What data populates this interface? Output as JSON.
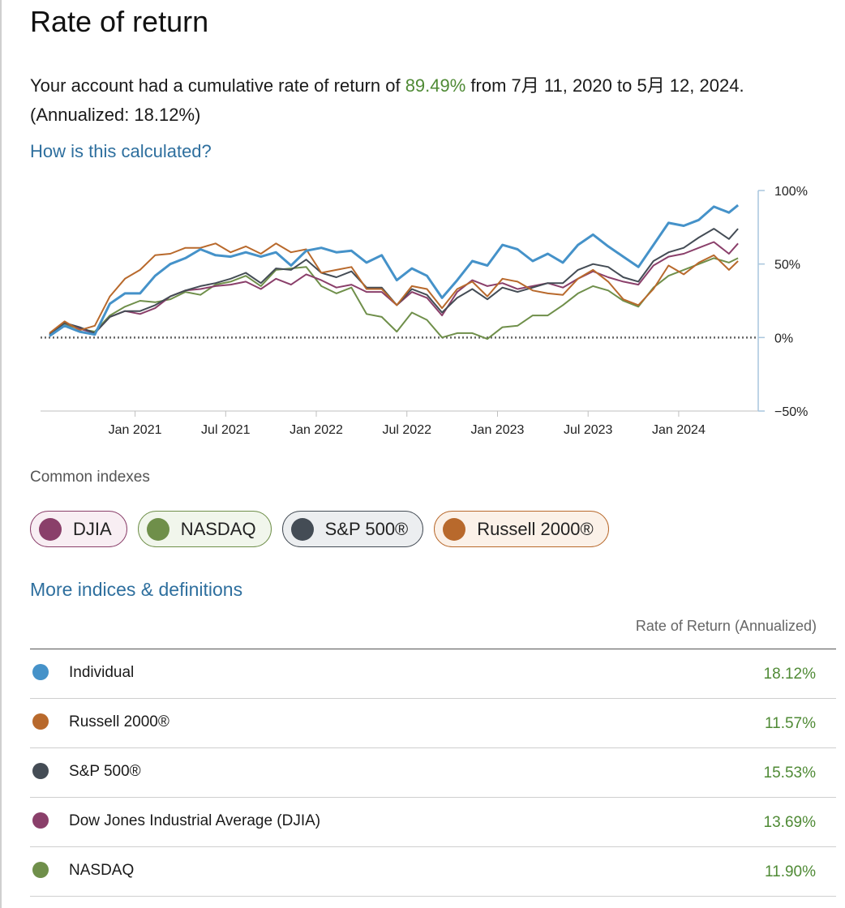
{
  "title": "Rate of return",
  "summary": {
    "prefix": "Your account had a cumulative rate of return of ",
    "cumulative": "89.49%",
    "middle": " from 7月 11, 2020 to 5月 12, 2024. (Annualized: 18.12%)"
  },
  "how_link": "How is this calculated?",
  "colors": {
    "Individual": "#4592c9",
    "Russell 2000®": "#b8692c",
    "S&P 500®": "#444c55",
    "DJIA": "#8a3f6a",
    "NASDAQ": "#6f8f4a",
    "positive_text": "#4f8a35",
    "link": "#2e6f9e"
  },
  "chart_data": {
    "type": "line",
    "x_tick_labels": [
      "Jan 2021",
      "Jul 2021",
      "Jan 2022",
      "Jul 2022",
      "Jan 2023",
      "Jul 2023",
      "Jan 2024"
    ],
    "y_tick_labels": [
      "100%",
      "50%",
      "0%",
      "−50%"
    ],
    "ylim": [
      -50,
      100
    ],
    "y_ticks": [
      100,
      50,
      0,
      -50
    ],
    "x_ticks_month": [
      5.67,
      11.67,
      17.67,
      23.67,
      29.67,
      35.67,
      41.67
    ],
    "x_range_month": [
      0,
      46.4
    ],
    "baseline": 0,
    "series": [
      {
        "name": "Individual",
        "color": "#4592c9",
        "points": [
          [
            0,
            1
          ],
          [
            1,
            8
          ],
          [
            2,
            4
          ],
          [
            3,
            2
          ],
          [
            4,
            23
          ],
          [
            5,
            30
          ],
          [
            6,
            30
          ],
          [
            7,
            42
          ],
          [
            8,
            50
          ],
          [
            9,
            54
          ],
          [
            10,
            60
          ],
          [
            11,
            56
          ],
          [
            12,
            55
          ],
          [
            13,
            58
          ],
          [
            14,
            55
          ],
          [
            15,
            58
          ],
          [
            16,
            49
          ],
          [
            17,
            59
          ],
          [
            18,
            61
          ],
          [
            19,
            58
          ],
          [
            20,
            59
          ],
          [
            21,
            51
          ],
          [
            22,
            56
          ],
          [
            23,
            39
          ],
          [
            24,
            47
          ],
          [
            25,
            42
          ],
          [
            26,
            27
          ],
          [
            27,
            39
          ],
          [
            28,
            52
          ],
          [
            29,
            49
          ],
          [
            30,
            63
          ],
          [
            31,
            60
          ],
          [
            32,
            52
          ],
          [
            33,
            57
          ],
          [
            34,
            51
          ],
          [
            35,
            63
          ],
          [
            36,
            70
          ],
          [
            37,
            62
          ],
          [
            38,
            55
          ],
          [
            39,
            48
          ],
          [
            40,
            63
          ],
          [
            41,
            78
          ],
          [
            42,
            76
          ],
          [
            43,
            80
          ],
          [
            44,
            89
          ],
          [
            45,
            85
          ],
          [
            45.6,
            90
          ]
        ]
      },
      {
        "name": "Russell 2000®",
        "color": "#b8692c",
        "points": [
          [
            0,
            3
          ],
          [
            1,
            11
          ],
          [
            2,
            5
          ],
          [
            3,
            8
          ],
          [
            4,
            28
          ],
          [
            5,
            40
          ],
          [
            6,
            46
          ],
          [
            7,
            56
          ],
          [
            8,
            57
          ],
          [
            9,
            61
          ],
          [
            10,
            61
          ],
          [
            11,
            64
          ],
          [
            12,
            58
          ],
          [
            13,
            62
          ],
          [
            14,
            57
          ],
          [
            15,
            64
          ],
          [
            16,
            58
          ],
          [
            17,
            60
          ],
          [
            18,
            44
          ],
          [
            19,
            46
          ],
          [
            20,
            48
          ],
          [
            21,
            33
          ],
          [
            22,
            33
          ],
          [
            23,
            22
          ],
          [
            24,
            35
          ],
          [
            25,
            33
          ],
          [
            26,
            20
          ],
          [
            27,
            33
          ],
          [
            28,
            38
          ],
          [
            29,
            28
          ],
          [
            30,
            40
          ],
          [
            31,
            38
          ],
          [
            32,
            32
          ],
          [
            33,
            30
          ],
          [
            34,
            29
          ],
          [
            35,
            40
          ],
          [
            36,
            46
          ],
          [
            37,
            38
          ],
          [
            38,
            26
          ],
          [
            39,
            22
          ],
          [
            40,
            33
          ],
          [
            41,
            49
          ],
          [
            42,
            43
          ],
          [
            43,
            51
          ],
          [
            44,
            56
          ],
          [
            45,
            46
          ],
          [
            45.6,
            52
          ]
        ]
      },
      {
        "name": "S&P 500®",
        "color": "#444c55",
        "points": [
          [
            0,
            2
          ],
          [
            1,
            10
          ],
          [
            2,
            7
          ],
          [
            3,
            3
          ],
          [
            4,
            14
          ],
          [
            5,
            18
          ],
          [
            6,
            18
          ],
          [
            7,
            22
          ],
          [
            8,
            28
          ],
          [
            9,
            32
          ],
          [
            10,
            35
          ],
          [
            11,
            37
          ],
          [
            12,
            40
          ],
          [
            13,
            44
          ],
          [
            14,
            37
          ],
          [
            15,
            47
          ],
          [
            16,
            46
          ],
          [
            17,
            53
          ],
          [
            18,
            44
          ],
          [
            19,
            41
          ],
          [
            20,
            45
          ],
          [
            21,
            34
          ],
          [
            22,
            34
          ],
          [
            23,
            22
          ],
          [
            24,
            33
          ],
          [
            25,
            29
          ],
          [
            26,
            17
          ],
          [
            27,
            27
          ],
          [
            28,
            33
          ],
          [
            29,
            26
          ],
          [
            30,
            34
          ],
          [
            31,
            31
          ],
          [
            32,
            34
          ],
          [
            33,
            37
          ],
          [
            34,
            37
          ],
          [
            35,
            46
          ],
          [
            36,
            50
          ],
          [
            37,
            48
          ],
          [
            38,
            41
          ],
          [
            39,
            38
          ],
          [
            40,
            52
          ],
          [
            41,
            58
          ],
          [
            42,
            61
          ],
          [
            43,
            68
          ],
          [
            44,
            74
          ],
          [
            45,
            67
          ],
          [
            45.6,
            74
          ]
        ]
      },
      {
        "name": "DJIA",
        "color": "#8a3f6a",
        "points": [
          [
            0,
            2
          ],
          [
            1,
            10
          ],
          [
            2,
            6
          ],
          [
            3,
            3
          ],
          [
            4,
            14
          ],
          [
            5,
            18
          ],
          [
            6,
            16
          ],
          [
            7,
            20
          ],
          [
            8,
            28
          ],
          [
            9,
            32
          ],
          [
            10,
            33
          ],
          [
            11,
            35
          ],
          [
            12,
            36
          ],
          [
            13,
            38
          ],
          [
            14,
            33
          ],
          [
            15,
            40
          ],
          [
            16,
            36
          ],
          [
            17,
            43
          ],
          [
            18,
            39
          ],
          [
            19,
            34
          ],
          [
            20,
            36
          ],
          [
            21,
            31
          ],
          [
            22,
            31
          ],
          [
            23,
            22
          ],
          [
            24,
            31
          ],
          [
            25,
            27
          ],
          [
            26,
            15
          ],
          [
            27,
            31
          ],
          [
            28,
            39
          ],
          [
            29,
            35
          ],
          [
            30,
            37
          ],
          [
            31,
            33
          ],
          [
            32,
            35
          ],
          [
            33,
            37
          ],
          [
            34,
            34
          ],
          [
            35,
            40
          ],
          [
            36,
            45
          ],
          [
            37,
            41
          ],
          [
            38,
            38
          ],
          [
            39,
            36
          ],
          [
            40,
            49
          ],
          [
            41,
            55
          ],
          [
            42,
            57
          ],
          [
            43,
            61
          ],
          [
            44,
            65
          ],
          [
            45,
            57
          ],
          [
            45.6,
            64
          ]
        ]
      },
      {
        "name": "NASDAQ",
        "color": "#6f8f4a",
        "points": [
          [
            0,
            2
          ],
          [
            1,
            9
          ],
          [
            2,
            6
          ],
          [
            3,
            4
          ],
          [
            4,
            15
          ],
          [
            5,
            21
          ],
          [
            6,
            25
          ],
          [
            7,
            24
          ],
          [
            8,
            26
          ],
          [
            9,
            31
          ],
          [
            10,
            29
          ],
          [
            11,
            36
          ],
          [
            12,
            38
          ],
          [
            13,
            42
          ],
          [
            14,
            35
          ],
          [
            15,
            46
          ],
          [
            16,
            47
          ],
          [
            17,
            48
          ],
          [
            18,
            35
          ],
          [
            19,
            30
          ],
          [
            20,
            34
          ],
          [
            21,
            16
          ],
          [
            22,
            14
          ],
          [
            23,
            4
          ],
          [
            24,
            17
          ],
          [
            25,
            12
          ],
          [
            26,
            0
          ],
          [
            27,
            3
          ],
          [
            28,
            3
          ],
          [
            29,
            -1
          ],
          [
            30,
            7
          ],
          [
            31,
            8
          ],
          [
            32,
            15
          ],
          [
            33,
            15
          ],
          [
            34,
            22
          ],
          [
            35,
            30
          ],
          [
            36,
            35
          ],
          [
            37,
            32
          ],
          [
            38,
            25
          ],
          [
            39,
            21
          ],
          [
            40,
            34
          ],
          [
            41,
            42
          ],
          [
            42,
            46
          ],
          [
            43,
            50
          ],
          [
            44,
            54
          ],
          [
            45,
            51
          ],
          [
            45.6,
            54
          ]
        ]
      }
    ]
  },
  "common_indexes": {
    "label": "Common indexes",
    "chips": [
      {
        "label": "DJIA",
        "color": "#8a3f6a",
        "bg": "#f8eef3"
      },
      {
        "label": "NASDAQ",
        "color": "#6f8f4a",
        "bg": "#f1f6ec"
      },
      {
        "label": "S&P 500®",
        "color": "#444c55",
        "bg": "#eceef0"
      },
      {
        "label": "Russell 2000®",
        "color": "#b8692c",
        "bg": "#fbf1e8"
      }
    ]
  },
  "more_link": "More indices & definitions",
  "table": {
    "header": "Rate of Return (Annualized)",
    "rows": [
      {
        "name": "Individual",
        "value": "18.12%",
        "color": "#4592c9"
      },
      {
        "name": "Russell 2000®",
        "value": "11.57%",
        "color": "#b8692c"
      },
      {
        "name": "S&P 500®",
        "value": "15.53%",
        "color": "#444c55"
      },
      {
        "name": "Dow Jones Industrial Average (DJIA)",
        "value": "13.69%",
        "color": "#8a3f6a"
      },
      {
        "name": "NASDAQ",
        "value": "11.90%",
        "color": "#6f8f4a"
      }
    ]
  }
}
